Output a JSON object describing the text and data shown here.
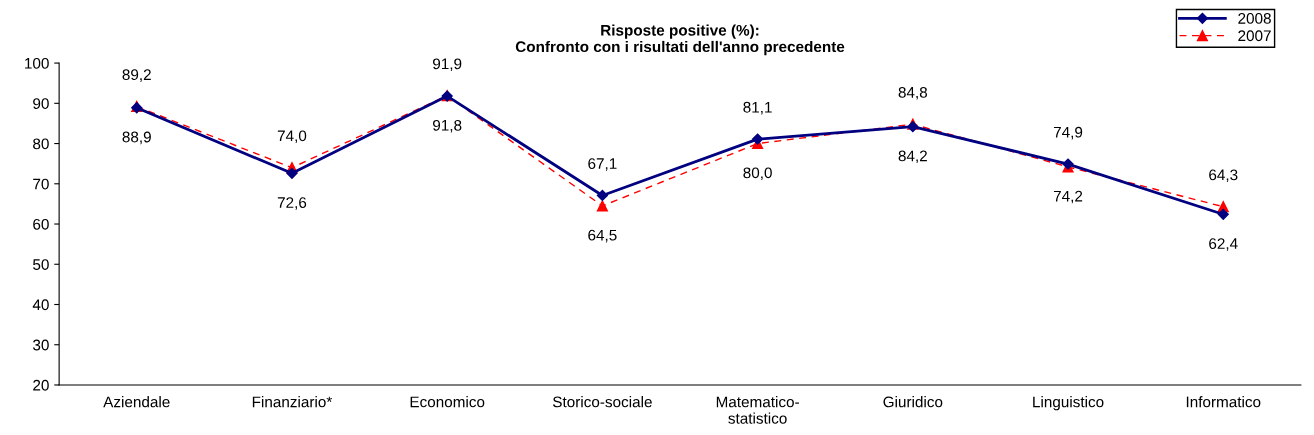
{
  "chart_data": {
    "type": "line",
    "title": "Risposte positive (%):\nConfronto con i risultati dell'anno precedente",
    "categories": [
      "Aziendale",
      "Finanziario*",
      "Economico",
      "Storico-sociale",
      "Matematico-\nstatistico",
      "Giuridico",
      "Linguistico",
      "Informatico"
    ],
    "series": [
      {
        "name": "2008",
        "color": "#000080",
        "marker": "diamond",
        "line_style": "solid",
        "values": [
          88.9,
          72.6,
          91.8,
          67.1,
          81.1,
          84.2,
          74.9,
          62.4
        ],
        "value_labels": [
          "88,9",
          "72,6",
          "91,8",
          "67,1",
          "81,1",
          "84,2",
          "74,9",
          "62,4"
        ]
      },
      {
        "name": "2007",
        "color": "#ff0000",
        "marker": "triangle",
        "line_style": "dashed",
        "values": [
          89.2,
          74.0,
          91.9,
          64.5,
          80.0,
          84.8,
          74.2,
          64.3
        ],
        "value_labels": [
          "89,2",
          "74,0",
          "91,9",
          "64,5",
          "80,0",
          "84,8",
          "74,2",
          "64,3"
        ]
      }
    ],
    "ylim": [
      20,
      100
    ],
    "yticks": [
      20,
      30,
      40,
      50,
      60,
      70,
      80,
      90,
      100
    ],
    "grid": false,
    "legend": "top right"
  }
}
